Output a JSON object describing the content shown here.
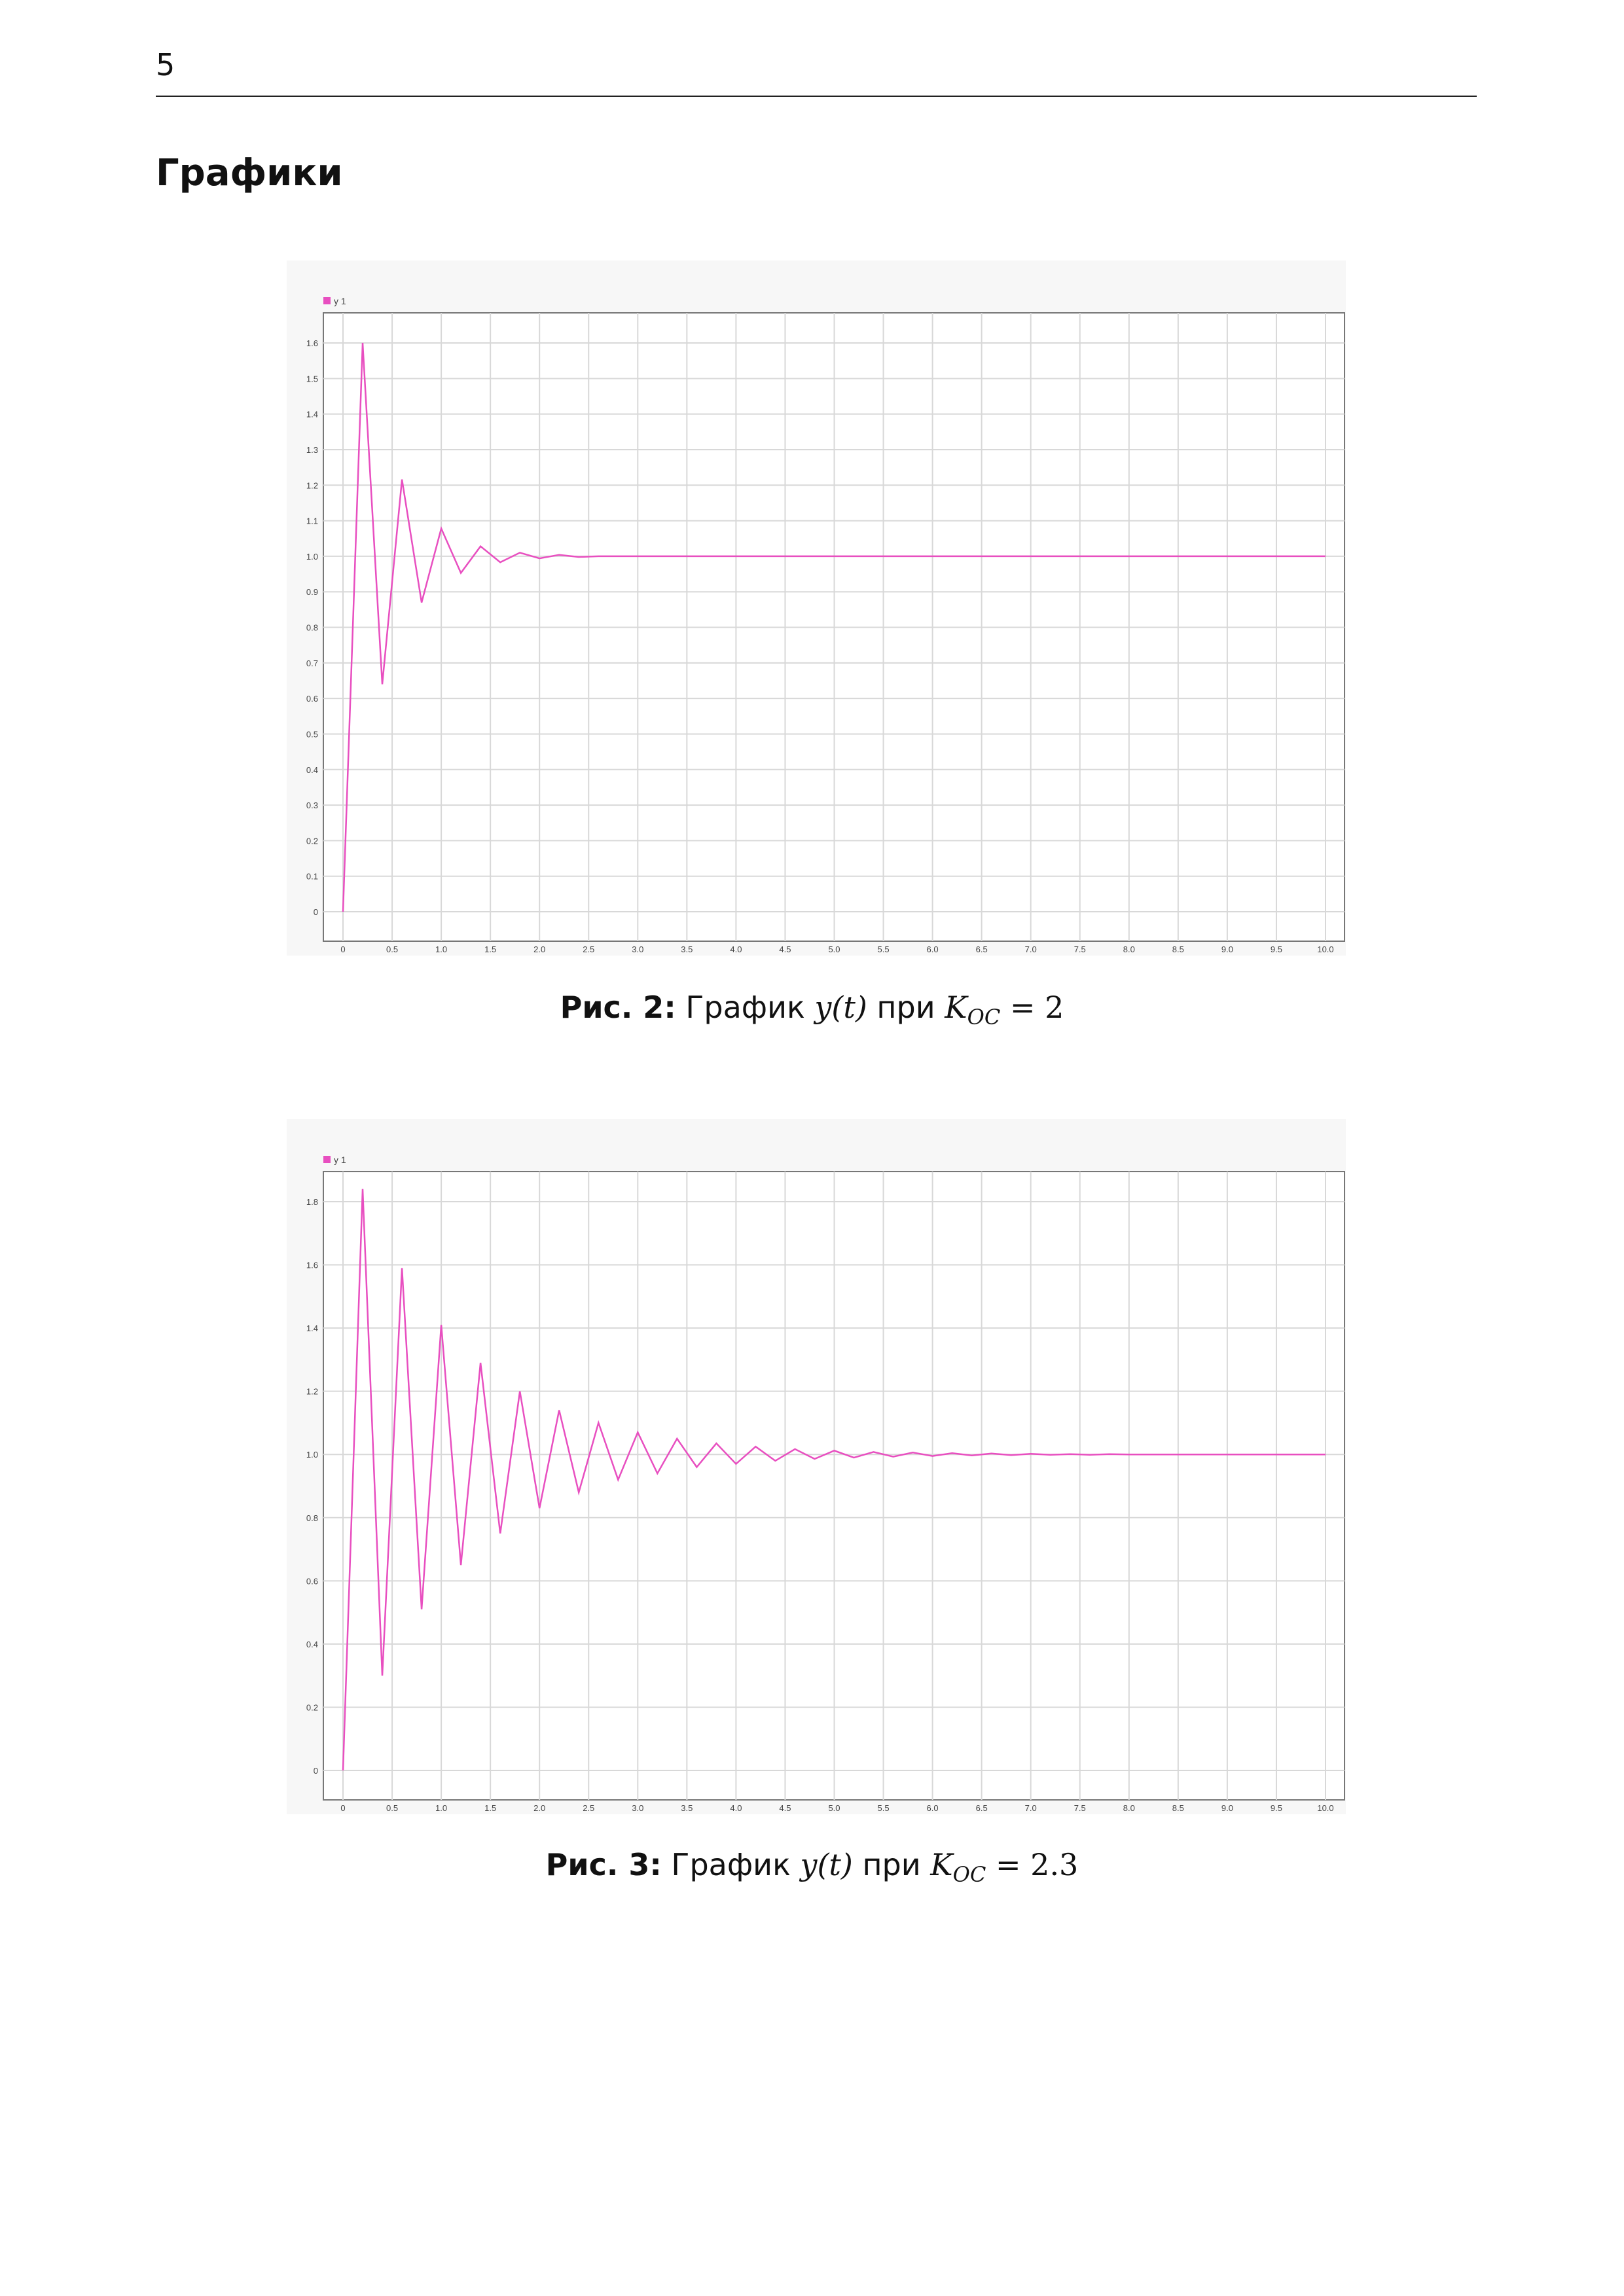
{
  "page_number": "5",
  "section_title": "Графики",
  "figures": [
    {
      "caption": {
        "label": "Рис. 2:",
        "text": "График",
        "math_func": "y(t)",
        "word": "при",
        "math_var": "K",
        "math_sub": "OC",
        "eq": "=",
        "value": "2"
      }
    },
    {
      "caption": {
        "label": "Рис. 3:",
        "text": "График",
        "math_func": "y(t)",
        "word": "при",
        "math_var": "K",
        "math_sub": "OC",
        "eq": "=",
        "value": "2.3"
      }
    }
  ],
  "chart_data": [
    {
      "type": "line",
      "legend": "y 1",
      "legend_position": "top-left",
      "grid": true,
      "color": "#e84fc0",
      "xlim": [
        0,
        10
      ],
      "ylim": [
        0,
        1.6
      ],
      "x_ticks": [
        "0",
        "0.5",
        "1.0",
        "1.5",
        "2.0",
        "2.5",
        "3.0",
        "3.5",
        "4.0",
        "4.5",
        "5.0",
        "5.5",
        "6.0",
        "6.5",
        "7.0",
        "7.5",
        "8.0",
        "8.5",
        "9.0",
        "9.5",
        "10.0"
      ],
      "y_ticks": [
        "0",
        "0.1",
        "0.2",
        "0.3",
        "0.4",
        "0.5",
        "0.6",
        "0.7",
        "0.8",
        "0.9",
        "1.0",
        "1.1",
        "1.2",
        "1.3",
        "1.4",
        "1.5",
        "1.6"
      ],
      "x": [
        0,
        0.2,
        0.4,
        0.6,
        0.8,
        1.0,
        1.2,
        1.4,
        1.6,
        1.8,
        2.0,
        2.2,
        2.4,
        2.6,
        10.0
      ],
      "y": [
        0,
        1.6,
        0.64,
        1.216,
        0.87,
        1.078,
        0.953,
        1.028,
        0.983,
        1.01,
        0.994,
        1.004,
        0.998,
        1.0,
        1.0
      ]
    },
    {
      "type": "line",
      "legend": "y 1",
      "legend_position": "top-left",
      "grid": true,
      "color": "#e84fc0",
      "xlim": [
        0,
        10
      ],
      "ylim": [
        0,
        1.8
      ],
      "x_ticks": [
        "0",
        "0.5",
        "1.0",
        "1.5",
        "2.0",
        "2.5",
        "3.0",
        "3.5",
        "4.0",
        "4.5",
        "5.0",
        "5.5",
        "6.0",
        "6.5",
        "7.0",
        "7.5",
        "8.0",
        "8.5",
        "9.0",
        "9.5",
        "10.0"
      ],
      "y_ticks": [
        "0",
        "0.2",
        "0.4",
        "0.6",
        "0.8",
        "1.0",
        "1.2",
        "1.4",
        "1.6",
        "1.8"
      ],
      "x": [
        0,
        0.2,
        0.4,
        0.6,
        0.8,
        1.0,
        1.2,
        1.4,
        1.6,
        1.8,
        2.0,
        2.2,
        2.4,
        2.6,
        2.8,
        3.0,
        3.2,
        3.4,
        3.6,
        3.8,
        4.0,
        4.2,
        4.4,
        4.6,
        4.8,
        5.0,
        5.2,
        5.4,
        5.6,
        5.8,
        6.0,
        6.2,
        6.4,
        6.6,
        6.8,
        7.0,
        7.2,
        7.4,
        7.6,
        7.8,
        8.0,
        10.0
      ],
      "y": [
        0,
        1.84,
        0.3,
        1.59,
        0.51,
        1.41,
        0.65,
        1.29,
        0.75,
        1.2,
        0.83,
        1.14,
        0.88,
        1.1,
        0.92,
        1.07,
        0.94,
        1.05,
        0.96,
        1.035,
        0.97,
        1.025,
        0.98,
        1.017,
        0.986,
        1.012,
        0.99,
        1.008,
        0.993,
        1.006,
        0.995,
        1.004,
        0.997,
        1.003,
        0.998,
        1.002,
        0.999,
        1.001,
        0.999,
        1.001,
        1.0,
        1.0
      ]
    }
  ]
}
